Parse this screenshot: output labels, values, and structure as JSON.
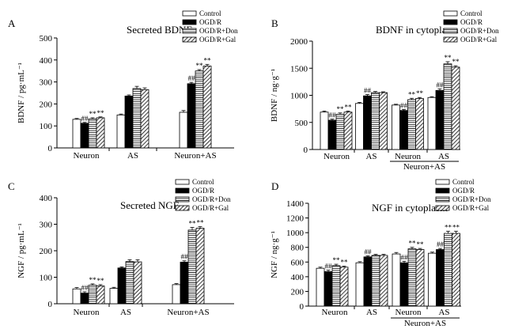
{
  "colors": {
    "ink": "#000000",
    "control": "#ffffff",
    "ogdr": "#000000",
    "background": "#ffffff"
  },
  "legend": [
    "Control",
    "OGD/R",
    "OGD/R+Don",
    "OGD/R+Gal"
  ],
  "chart_data": [
    {
      "panel": "A",
      "type": "bar",
      "title": "Secreted BDNF",
      "ylabel": "BDNF / pg·mL⁻¹",
      "ylim": [
        0,
        500
      ],
      "yticks": [
        0,
        100,
        200,
        300,
        400,
        500
      ],
      "categories": [
        "Neuron",
        "AS",
        "Neuron+AS"
      ],
      "group_label": "",
      "series": [
        {
          "name": "Control",
          "values": [
            130,
            150,
            162
          ],
          "errors": [
            4,
            4,
            8
          ]
        },
        {
          "name": "OGD/R",
          "values": [
            112,
            236,
            292
          ],
          "errors": [
            4,
            5,
            6
          ]
        },
        {
          "name": "OGD/R+Don",
          "values": [
            132,
            270,
            350
          ],
          "errors": [
            5,
            10,
            6
          ]
        },
        {
          "name": "OGD/R+Gal",
          "values": [
            137,
            265,
            372
          ],
          "errors": [
            4,
            8,
            8
          ]
        }
      ],
      "marks": [
        [
          "",
          "##",
          "**",
          "**"
        ],
        [
          "",
          "",
          "",
          ""
        ],
        [
          "",
          "##",
          "**",
          "**"
        ]
      ]
    },
    {
      "panel": "B",
      "type": "bar",
      "title": "BDNF in cytoplasm",
      "ylabel": "BDNF / ng·g⁻¹",
      "ylim": [
        0,
        2000
      ],
      "yticks": [
        0,
        500,
        1000,
        1500,
        2000
      ],
      "categories": [
        "Neuron",
        "AS",
        "Neuron",
        "AS"
      ],
      "group_label": "Neuron+AS",
      "series": [
        {
          "name": "Control",
          "values": [
            690,
            850,
            820,
            960
          ],
          "errors": [
            20,
            20,
            15,
            15
          ]
        },
        {
          "name": "OGD/R",
          "values": [
            540,
            990,
            720,
            1090
          ],
          "errors": [
            20,
            25,
            20,
            30
          ]
        },
        {
          "name": "OGD/R+Don",
          "values": [
            650,
            1050,
            920,
            1580
          ],
          "errors": [
            25,
            20,
            25,
            40
          ]
        },
        {
          "name": "OGD/R+Gal",
          "values": [
            690,
            1050,
            940,
            1520
          ],
          "errors": [
            20,
            15,
            20,
            25
          ]
        }
      ],
      "marks": [
        [
          "",
          "##",
          "**",
          "**"
        ],
        [
          "",
          "##",
          "",
          ""
        ],
        [
          "",
          "##",
          "**",
          "**"
        ],
        [
          "",
          "##",
          "**",
          "**"
        ]
      ]
    },
    {
      "panel": "C",
      "type": "bar",
      "title": "Secreted NGF",
      "ylabel": "NGF / pg·mL⁻¹",
      "ylim": [
        0,
        400
      ],
      "yticks": [
        0,
        100,
        200,
        300,
        400
      ],
      "categories": [
        "Neuron",
        "AS",
        "Neuron+AS"
      ],
      "group_label": "",
      "series": [
        {
          "name": "Control",
          "values": [
            56,
            58,
            72
          ],
          "errors": [
            5,
            4,
            4
          ]
        },
        {
          "name": "OGD/R",
          "values": [
            40,
            135,
            157
          ],
          "errors": [
            5,
            4,
            5
          ]
        },
        {
          "name": "OGD/R+Don",
          "values": [
            70,
            159,
            278
          ],
          "errors": [
            5,
            7,
            10
          ]
        },
        {
          "name": "OGD/R+Gal",
          "values": [
            67,
            158,
            285
          ],
          "errors": [
            5,
            8,
            6
          ]
        }
      ],
      "marks": [
        [
          "",
          "##",
          "**",
          "**"
        ],
        [
          "",
          "",
          "",
          ""
        ],
        [
          "",
          "##",
          "**",
          "**"
        ]
      ]
    },
    {
      "panel": "D",
      "type": "bar",
      "title": "NGF in cytoplasm",
      "ylabel": "NGF / ng·g⁻¹",
      "ylim": [
        0,
        1400
      ],
      "yticks": [
        0,
        200,
        400,
        600,
        800,
        1000,
        1200,
        1400
      ],
      "categories": [
        "Neuron",
        "AS",
        "Neuron",
        "AS"
      ],
      "group_label": "Neuron+AS",
      "series": [
        {
          "name": "Control",
          "values": [
            515,
            590,
            710,
            720
          ],
          "errors": [
            15,
            15,
            20,
            15
          ]
        },
        {
          "name": "OGD/R",
          "values": [
            470,
            670,
            590,
            770
          ],
          "errors": [
            20,
            15,
            20,
            15
          ]
        },
        {
          "name": "OGD/R+Don",
          "values": [
            550,
            690,
            780,
            990
          ],
          "errors": [
            20,
            15,
            20,
            30
          ]
        },
        {
          "name": "OGD/R+Gal",
          "values": [
            530,
            690,
            770,
            990
          ],
          "errors": [
            15,
            15,
            15,
            30
          ]
        }
      ],
      "marks": [
        [
          "",
          "##",
          "**",
          "**"
        ],
        [
          "",
          "##",
          "",
          ""
        ],
        [
          "",
          "##",
          "**",
          "**"
        ],
        [
          "",
          "##",
          "**",
          "**"
        ]
      ]
    }
  ]
}
